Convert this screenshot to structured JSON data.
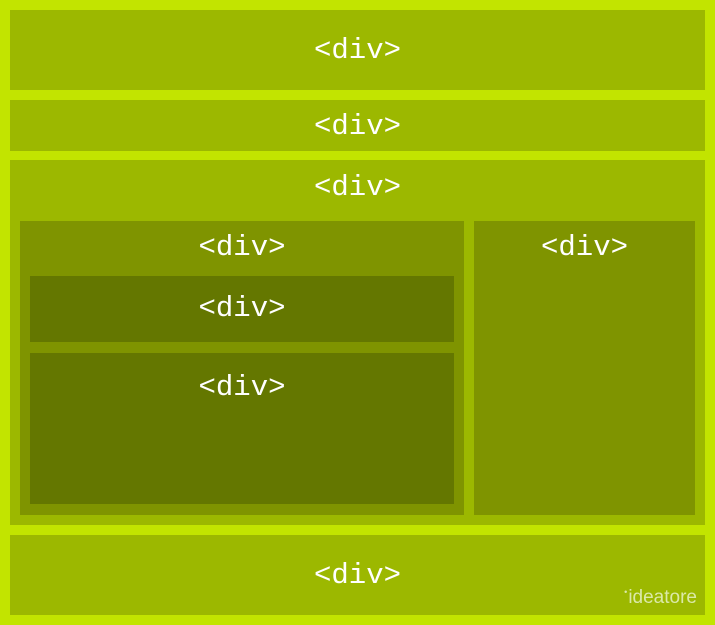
{
  "colors": {
    "background": "#c2e400",
    "level1": "#9cb800",
    "level2": "#7f9400",
    "level3": "#647700",
    "text": "#ffffff",
    "watermark": "#dbe9a8"
  },
  "header": {
    "label": "<div>"
  },
  "nav": {
    "label": "<div>"
  },
  "main": {
    "label": "<div>",
    "content": {
      "label": "<div>",
      "top": {
        "label": "<div>"
      },
      "body": {
        "label": "<div>"
      }
    },
    "sidebar": {
      "label": "<div>"
    }
  },
  "footer": {
    "label": "<div>",
    "watermark": "ideatore"
  }
}
